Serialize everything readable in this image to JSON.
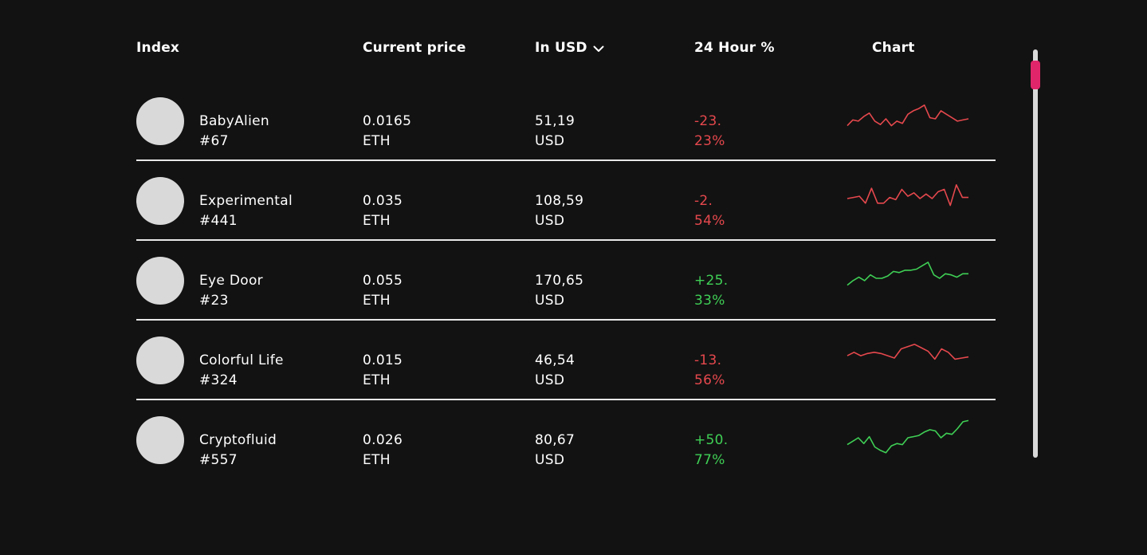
{
  "header": {
    "index": "Index",
    "current_price": "Current price",
    "in_usd": "In USD",
    "change_24h": "24 Hour %",
    "chart": "Chart"
  },
  "colors": {
    "negative": "#e5484d",
    "positive": "#3fcf55",
    "scroll_thumb": "#e0256a"
  },
  "rows": [
    {
      "name": "BabyAlien",
      "number": "#67",
      "price": "0.0165",
      "price_unit": "ETH",
      "usd": "51,19",
      "usd_unit": "USD",
      "change_line1": "-23.",
      "change_line2": "23%",
      "direction": "negative",
      "spark": [
        30,
        35,
        34,
        38,
        41,
        34,
        31,
        36,
        30,
        34,
        32,
        40,
        43,
        45,
        48,
        37,
        36,
        43,
        40,
        37,
        34,
        35,
        36
      ]
    },
    {
      "name": "Experimental",
      "number": "#441",
      "price": "0.035",
      "price_unit": "ETH",
      "usd": "108,59",
      "usd_unit": "USD",
      "change_line1": "-2.",
      "change_line2": "54%",
      "direction": "negative",
      "spark": [
        36,
        37,
        38,
        32,
        45,
        32,
        32,
        37,
        35,
        44,
        38,
        41,
        36,
        40,
        36,
        42,
        44,
        30,
        48,
        37,
        37
      ]
    },
    {
      "name": "Eye Door",
      "number": "#23",
      "price": "0.055",
      "price_unit": "ETH",
      "usd": "170,65",
      "usd_unit": "USD",
      "change_line1": "+25.",
      "change_line2": "33%",
      "direction": "positive",
      "spark": [
        30,
        34,
        37,
        34,
        39,
        36,
        36,
        38,
        42,
        41,
        43,
        43,
        44,
        47,
        50,
        39,
        36,
        40,
        39,
        37,
        40,
        40
      ]
    },
    {
      "name": "Colorful Life",
      "number": "#324",
      "price": "0.015",
      "price_unit": "ETH",
      "usd": "46,54",
      "usd_unit": "USD",
      "change_line1": "-13.",
      "change_line2": "56%",
      "direction": "negative",
      "spark": [
        38,
        41,
        38,
        40,
        41,
        40,
        38,
        36,
        44,
        46,
        48,
        45,
        42,
        35,
        44,
        41,
        35,
        36,
        37
      ]
    },
    {
      "name": "Cryptofluid",
      "number": "#557",
      "price": "0.026",
      "price_unit": "ETH",
      "usd": "80,67",
      "usd_unit": "USD",
      "change_line1": "+50.",
      "change_line2": "77%",
      "direction": "positive",
      "spark": [
        30,
        33,
        36,
        31,
        37,
        28,
        25,
        23,
        29,
        31,
        30,
        36,
        37,
        38,
        41,
        43,
        42,
        36,
        40,
        39,
        44,
        50,
        51
      ]
    }
  ]
}
